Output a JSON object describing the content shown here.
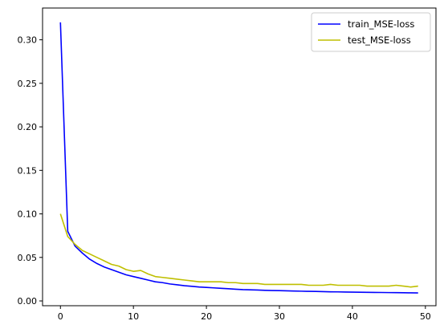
{
  "chart_data": {
    "type": "line",
    "title": "",
    "xlabel": "",
    "ylabel": "",
    "xlim": [
      -2.45,
      51.45
    ],
    "ylim": [
      -0.0055,
      0.3365
    ],
    "grid": false,
    "legend_position": "top-right",
    "x_ticks": [
      0,
      10,
      20,
      30,
      40,
      50
    ],
    "y_ticks": [
      0.0,
      0.05,
      0.1,
      0.15,
      0.2,
      0.25,
      0.3
    ],
    "x_tick_labels": [
      "0",
      "10",
      "20",
      "30",
      "40",
      "50"
    ],
    "y_tick_labels": [
      "0.00",
      "0.05",
      "0.10",
      "0.15",
      "0.20",
      "0.25",
      "0.30"
    ],
    "x": [
      0,
      1,
      2,
      3,
      4,
      5,
      6,
      7,
      8,
      9,
      10,
      11,
      12,
      13,
      14,
      15,
      16,
      17,
      18,
      19,
      20,
      21,
      22,
      23,
      24,
      25,
      26,
      27,
      28,
      29,
      30,
      31,
      32,
      33,
      34,
      35,
      36,
      37,
      38,
      39,
      40,
      41,
      42,
      43,
      44,
      45,
      46,
      47,
      48,
      49
    ],
    "series": [
      {
        "name": "train_MSE-loss",
        "color": "#0000ff",
        "values": [
          0.32,
          0.08,
          0.063,
          0.055,
          0.048,
          0.043,
          0.039,
          0.036,
          0.033,
          0.03,
          0.028,
          0.026,
          0.024,
          0.022,
          0.021,
          0.0195,
          0.0185,
          0.0175,
          0.0168,
          0.016,
          0.0155,
          0.015,
          0.0145,
          0.014,
          0.0135,
          0.013,
          0.0128,
          0.0125,
          0.0122,
          0.012,
          0.0118,
          0.0116,
          0.0114,
          0.0112,
          0.011,
          0.0109,
          0.0107,
          0.0105,
          0.0104,
          0.0102,
          0.0101,
          0.01,
          0.0099,
          0.0098,
          0.0097,
          0.0096,
          0.0095,
          0.0094,
          0.0093,
          0.0092
        ]
      },
      {
        "name": "test_MSE-loss",
        "color": "#bfbf00",
        "values": [
          0.1,
          0.074,
          0.065,
          0.058,
          0.054,
          0.05,
          0.046,
          0.042,
          0.04,
          0.036,
          0.034,
          0.035,
          0.031,
          0.028,
          0.027,
          0.026,
          0.025,
          0.024,
          0.023,
          0.022,
          0.022,
          0.022,
          0.022,
          0.021,
          0.021,
          0.02,
          0.02,
          0.02,
          0.019,
          0.019,
          0.019,
          0.019,
          0.019,
          0.019,
          0.018,
          0.018,
          0.018,
          0.019,
          0.018,
          0.018,
          0.018,
          0.018,
          0.017,
          0.017,
          0.017,
          0.017,
          0.018,
          0.017,
          0.016,
          0.017
        ]
      }
    ]
  }
}
